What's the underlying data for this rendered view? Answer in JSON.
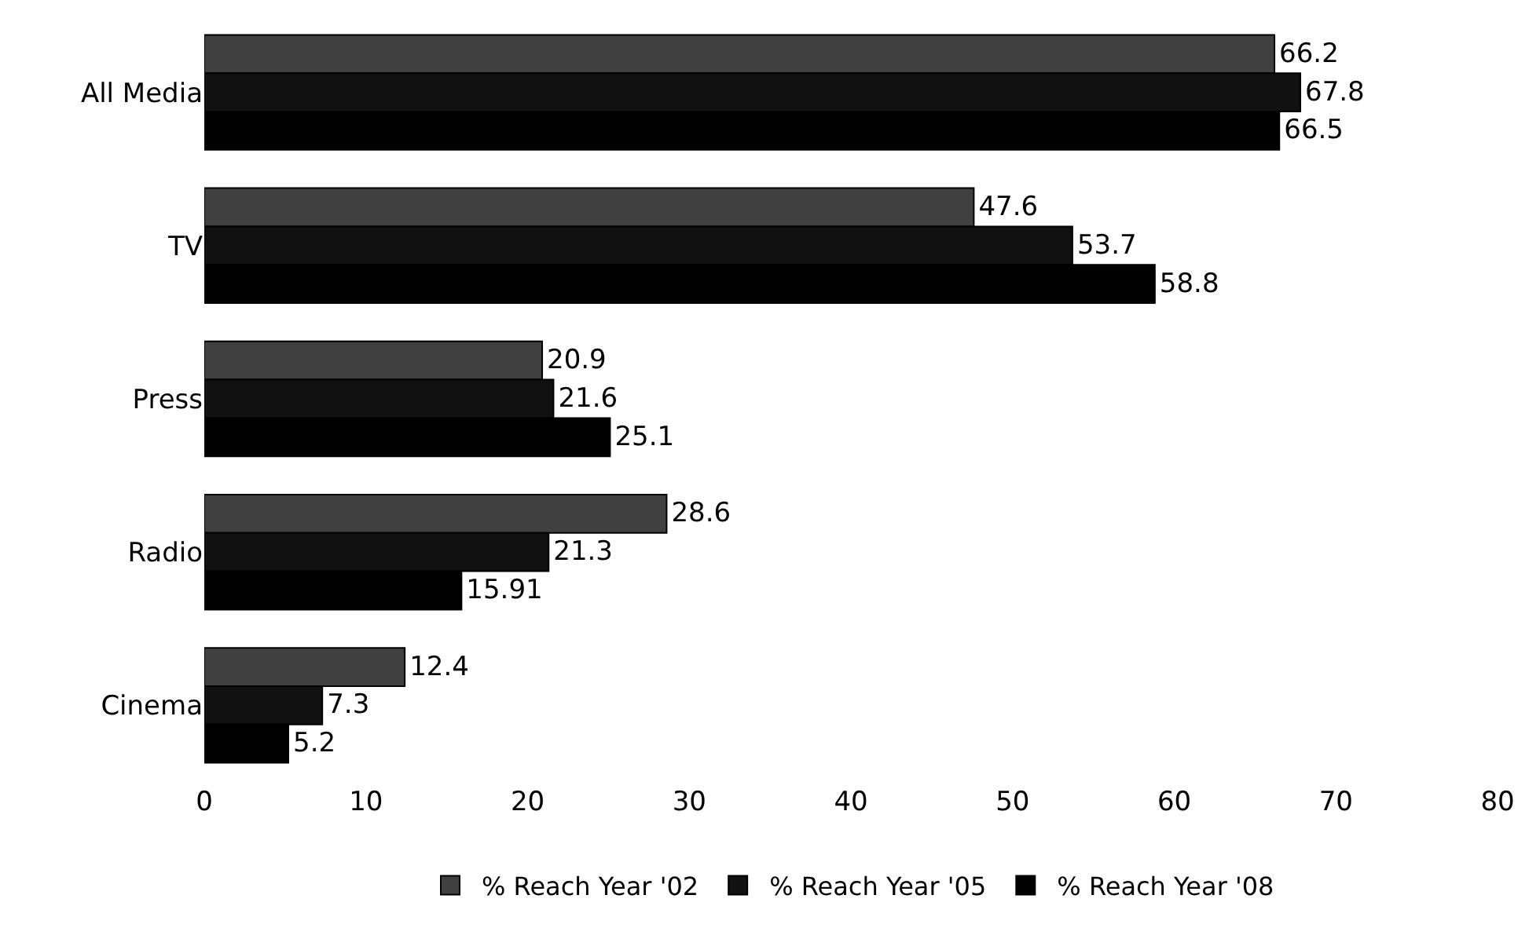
{
  "chart_data": {
    "type": "bar",
    "orientation": "horizontal",
    "categories": [
      "All Media",
      "TV",
      "Press",
      "Radio",
      "Cinema"
    ],
    "series": [
      {
        "name": "% Reach Year '02",
        "color": "#404040",
        "values": [
          66.2,
          47.6,
          20.9,
          28.6,
          12.4
        ]
      },
      {
        "name": "% Reach Year '05",
        "color": "#111111",
        "values": [
          67.8,
          53.7,
          21.6,
          21.3,
          7.3
        ]
      },
      {
        "name": "% Reach Year '08",
        "color": "#000000",
        "values": [
          66.5,
          58.8,
          25.1,
          15.91,
          5.2
        ]
      }
    ],
    "xlim": [
      0,
      80
    ],
    "xticks": [
      0,
      10,
      20,
      30,
      40,
      50,
      60,
      70,
      80
    ],
    "data_labels": true,
    "grid": false,
    "legend": "bottom"
  }
}
